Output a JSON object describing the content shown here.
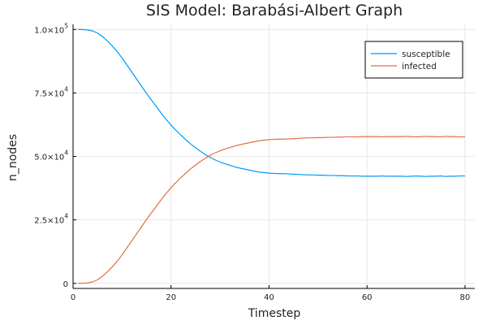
{
  "chart_data": {
    "type": "line",
    "title": "SIS Model: Barabási-Albert Graph",
    "xlabel": "Timestep",
    "ylabel": "n_nodes",
    "xlim": [
      0,
      82
    ],
    "ylim": [
      -2000,
      102000
    ],
    "grid": true,
    "legend_position": "top-right",
    "x_ticks": [
      {
        "value": 0,
        "label": "0"
      },
      {
        "value": 20,
        "label": "20"
      },
      {
        "value": 40,
        "label": "40"
      },
      {
        "value": 60,
        "label": "60"
      },
      {
        "value": 80,
        "label": "80"
      }
    ],
    "y_ticks": [
      {
        "value": 0,
        "mantissa": "0",
        "exponent": ""
      },
      {
        "value": 25000,
        "mantissa": "2.5×10",
        "exponent": "4"
      },
      {
        "value": 50000,
        "mantissa": "5.0×10",
        "exponent": "4"
      },
      {
        "value": 75000,
        "mantissa": "7.5×10",
        "exponent": "4"
      },
      {
        "value": 100000,
        "mantissa": "1.0×10",
        "exponent": "5"
      }
    ],
    "x": [
      1,
      2,
      3,
      4,
      5,
      6,
      7,
      8,
      9,
      10,
      11,
      12,
      13,
      14,
      15,
      16,
      17,
      18,
      19,
      20,
      21,
      22,
      23,
      24,
      25,
      26,
      27,
      28,
      29,
      30,
      31,
      32,
      33,
      34,
      35,
      36,
      37,
      38,
      39,
      40,
      41,
      42,
      43,
      44,
      45,
      46,
      47,
      48,
      49,
      50,
      51,
      52,
      53,
      54,
      55,
      56,
      57,
      58,
      59,
      60,
      61,
      62,
      63,
      64,
      65,
      66,
      67,
      68,
      69,
      70,
      71,
      72,
      73,
      74,
      75,
      76,
      77,
      78,
      79,
      80
    ],
    "series": [
      {
        "name": "susceptible",
        "color": "#009AFA",
        "values": [
          100000,
          99950,
          99800,
          99400,
          98600,
          97200,
          95500,
          93500,
          91300,
          88800,
          86000,
          83200,
          80400,
          77600,
          74800,
          72200,
          69600,
          67000,
          64600,
          62300,
          60300,
          58400,
          56600,
          54900,
          53400,
          52000,
          50700,
          49600,
          48600,
          47800,
          47100,
          46500,
          45900,
          45400,
          45000,
          44600,
          44200,
          43800,
          43600,
          43400,
          43300,
          43200,
          43200,
          43100,
          43000,
          42900,
          42800,
          42700,
          42700,
          42600,
          42600,
          42500,
          42500,
          42400,
          42400,
          42300,
          42300,
          42300,
          42200,
          42200,
          42200,
          42200,
          42300,
          42200,
          42200,
          42200,
          42200,
          42100,
          42200,
          42300,
          42200,
          42100,
          42200,
          42200,
          42300,
          42100,
          42200,
          42200,
          42300,
          42300
        ]
      },
      {
        "name": "infected",
        "color": "#E36F47",
        "values": [
          0,
          50,
          200,
          600,
          1400,
          2800,
          4500,
          6500,
          8700,
          11200,
          14000,
          16800,
          19600,
          22400,
          25200,
          27800,
          30400,
          33000,
          35400,
          37700,
          39700,
          41600,
          43400,
          45100,
          46600,
          48000,
          49300,
          50400,
          51400,
          52200,
          52900,
          53500,
          54100,
          54600,
          55000,
          55400,
          55800,
          56200,
          56400,
          56600,
          56700,
          56800,
          56800,
          56900,
          57000,
          57100,
          57200,
          57300,
          57300,
          57400,
          57400,
          57500,
          57500,
          57600,
          57600,
          57700,
          57700,
          57700,
          57800,
          57800,
          57800,
          57800,
          57700,
          57800,
          57800,
          57800,
          57800,
          57900,
          57800,
          57700,
          57800,
          57900,
          57800,
          57800,
          57700,
          57900,
          57800,
          57800,
          57700,
          57700
        ]
      }
    ]
  }
}
